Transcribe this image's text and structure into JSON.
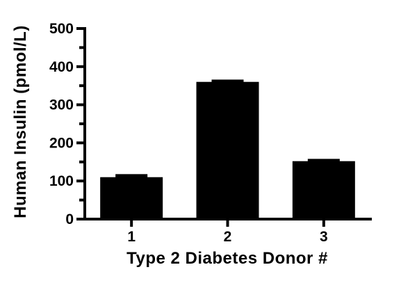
{
  "chart_data": {
    "type": "bar",
    "title": "",
    "xlabel": "Type 2 Diabetes Donor #",
    "ylabel": "Human Insulin (pmol/L)",
    "categories": [
      "1",
      "2",
      "3"
    ],
    "values": [
      110,
      360,
      152
    ],
    "error_upper": [
      118,
      366,
      158
    ],
    "ylim": [
      0,
      500
    ],
    "ytick_step": 100,
    "yminor_step": 50,
    "ytick_labels": [
      "0",
      "100",
      "200",
      "300",
      "400",
      "500"
    ],
    "bar_color": "#000000",
    "axis_color": "#000000",
    "background": "#ffffff",
    "grid": false,
    "legend": "none"
  }
}
